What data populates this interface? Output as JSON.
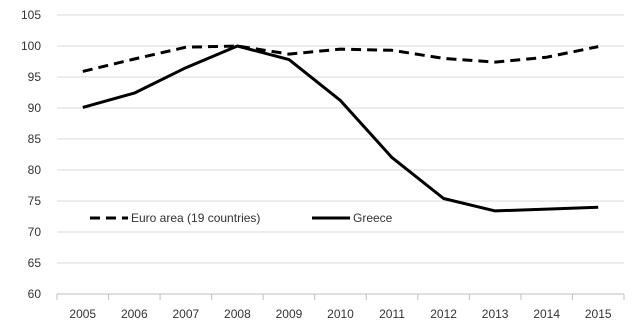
{
  "chart_data": {
    "type": "line",
    "title": "",
    "xlabel": "",
    "ylabel": "",
    "categories": [
      "2005",
      "2006",
      "2007",
      "2008",
      "2009",
      "2010",
      "2011",
      "2012",
      "2013",
      "2014",
      "2015"
    ],
    "ylim": [
      60,
      105
    ],
    "yticks": [
      60,
      65,
      70,
      75,
      80,
      85,
      90,
      95,
      100,
      105
    ],
    "grid": "horizontal",
    "legend_position": "bottom-left",
    "series": [
      {
        "name": "Euro area (19 countries)",
        "style": "dashed",
        "color": "#000000",
        "values": [
          95.9,
          97.9,
          99.8,
          100.0,
          98.7,
          99.5,
          99.3,
          98.0,
          97.4,
          98.2,
          99.9
        ]
      },
      {
        "name": "Greece",
        "style": "solid",
        "color": "#000000",
        "values": [
          90.1,
          92.4,
          96.5,
          100.0,
          97.8,
          91.2,
          82.0,
          75.4,
          73.4,
          73.7,
          74.0
        ]
      }
    ]
  }
}
